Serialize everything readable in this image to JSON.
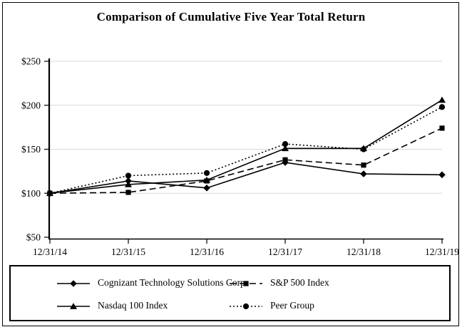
{
  "title": "Comparison of Cumulative Five Year Total Return",
  "chart_data": {
    "type": "line",
    "x_labels": [
      "12/31/14",
      "12/31/15",
      "12/31/16",
      "12/31/17",
      "12/31/18",
      "12/31/19"
    ],
    "y_ticks": [
      "$250",
      "$200",
      "$150",
      "$100",
      "$50"
    ],
    "ylim": [
      50,
      250
    ],
    "xlabel": "",
    "ylabel": "",
    "grid": "horizontal-light-gray",
    "legend_position": "bottom-box",
    "series": [
      {
        "name": "Cognizant Technology Solutions Corp",
        "marker": "diamond",
        "line": "solid",
        "values": [
          100,
          114,
          106,
          135,
          122,
          121
        ]
      },
      {
        "name": "S&P 500 Index",
        "marker": "square",
        "line": "dashed",
        "values": [
          100,
          101,
          114,
          138,
          132,
          174
        ]
      },
      {
        "name": "Nasdaq 100 Index",
        "marker": "triangle",
        "line": "solid",
        "values": [
          100,
          110,
          115,
          151,
          151,
          206
        ]
      },
      {
        "name": "Peer Group",
        "marker": "circle",
        "line": "dotted",
        "values": [
          100,
          120,
          123,
          156,
          150,
          198
        ]
      }
    ],
    "colors": {
      "line": "#000000",
      "grid": "#d9d9d9",
      "axis": "#000000",
      "background": "#ffffff"
    }
  },
  "legend": {
    "order": [
      0,
      1,
      2,
      3
    ]
  }
}
